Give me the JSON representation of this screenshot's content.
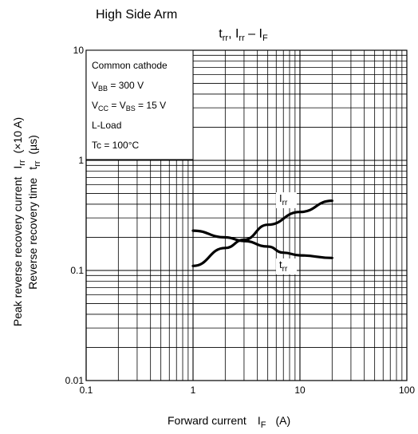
{
  "heading": "High Side Arm",
  "chart_data": {
    "type": "line",
    "title": {
      "t": "t",
      "t_sub": "rr",
      "sep": ", ",
      "i": "I",
      "i_sub": "rr",
      "dash": " – ",
      "f": "I",
      "f_sub": "F"
    },
    "xlabel": {
      "text": "Forward current",
      "sym": "I",
      "sym_sub": "F",
      "unit": "(A)"
    },
    "ylabel_outer": {
      "text": "Peak reverse recovery current",
      "sym": "I",
      "sym_sub": "rr",
      "unit": "(×10 A)"
    },
    "ylabel_inner": {
      "text": "Reverse recovery time",
      "sym": "t",
      "sym_sub": "rr",
      "unit": "(µs)"
    },
    "x_scale": "log",
    "y_scale": "log",
    "xlim": [
      0.1,
      100
    ],
    "ylim": [
      0.01,
      10
    ],
    "x_ticks": [
      "0.1",
      "1",
      "10",
      "100"
    ],
    "y_ticks": [
      "0.01",
      "0.1",
      "1",
      "10"
    ],
    "grid": true,
    "conditions": [
      {
        "text": "Common cathode"
      },
      {
        "a": "V",
        "a_sub": "BB",
        "b": " = 300 V"
      },
      {
        "a": "V",
        "a_sub": "CC",
        "b": " = V",
        "b_sub": "BS",
        "c": " = 15 V"
      },
      {
        "text": "L-Load"
      },
      {
        "text": "Tc = 100°C"
      }
    ],
    "series": [
      {
        "name": "Irr",
        "label_main": "I",
        "label_sub": "rr",
        "x": [
          1,
          2,
          3,
          5,
          10,
          20
        ],
        "y": [
          0.11,
          0.16,
          0.19,
          0.26,
          0.34,
          0.43
        ]
      },
      {
        "name": "trr",
        "label_main": "t",
        "label_sub": "rr",
        "x": [
          1,
          2,
          3,
          5,
          7,
          10,
          20
        ],
        "y": [
          0.23,
          0.2,
          0.185,
          0.165,
          0.145,
          0.137,
          0.13
        ]
      }
    ]
  }
}
